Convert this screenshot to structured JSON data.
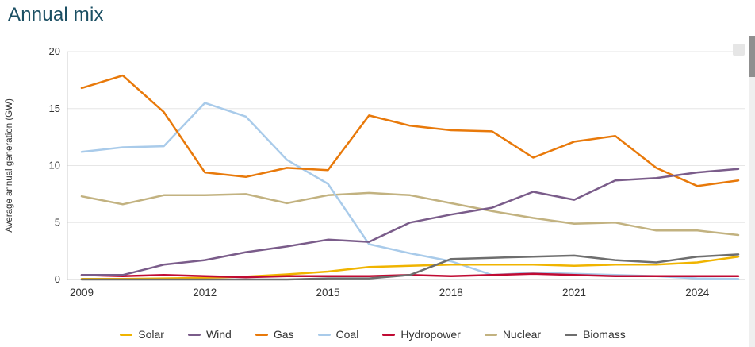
{
  "page": {
    "title": "Annual mix"
  },
  "chart_data": {
    "type": "line",
    "title": "Annual mix",
    "xlabel": "",
    "ylabel": "Average annual generation (GW)",
    "x": [
      2009,
      2010,
      2011,
      2012,
      2013,
      2014,
      2015,
      2016,
      2017,
      2018,
      2019,
      2020,
      2021,
      2022,
      2023,
      2024,
      2025
    ],
    "x_ticks": [
      2009,
      2012,
      2015,
      2018,
      2021,
      2024
    ],
    "ylim": [
      0,
      20
    ],
    "y_ticks": [
      0,
      5,
      10,
      15,
      20
    ],
    "grid": true,
    "legend_position": "bottom",
    "series": [
      {
        "name": "Solar",
        "color": "#f0b400",
        "values": [
          0.05,
          0.05,
          0.1,
          0.15,
          0.25,
          0.45,
          0.7,
          1.1,
          1.2,
          1.3,
          1.3,
          1.3,
          1.2,
          1.3,
          1.3,
          1.5,
          2.0
        ]
      },
      {
        "name": "Wind",
        "color": "#7a5c8a",
        "values": [
          0.4,
          0.4,
          1.3,
          1.7,
          2.4,
          2.9,
          3.5,
          3.3,
          5.0,
          5.7,
          6.3,
          7.7,
          7.0,
          8.7,
          8.9,
          9.4,
          9.7
        ]
      },
      {
        "name": "Gas",
        "color": "#e8790a",
        "values": [
          16.8,
          17.9,
          14.7,
          9.4,
          9.0,
          9.8,
          9.6,
          14.4,
          13.5,
          13.1,
          13.0,
          10.7,
          12.1,
          12.6,
          9.8,
          8.2,
          8.7
        ]
      },
      {
        "name": "Coal",
        "color": "#a9cbea",
        "values": [
          11.2,
          11.6,
          11.7,
          15.5,
          14.3,
          10.5,
          8.4,
          3.1,
          2.3,
          1.6,
          0.4,
          0.6,
          0.5,
          0.4,
          0.3,
          0.1,
          0.05
        ]
      },
      {
        "name": "Hydropower",
        "color": "#c00a33",
        "values": [
          0.4,
          0.3,
          0.4,
          0.3,
          0.2,
          0.3,
          0.3,
          0.3,
          0.4,
          0.3,
          0.4,
          0.5,
          0.4,
          0.3,
          0.3,
          0.3,
          0.3
        ]
      },
      {
        "name": "Nuclear",
        "color": "#c2b280",
        "values": [
          7.3,
          6.6,
          7.4,
          7.4,
          7.5,
          6.7,
          7.4,
          7.6,
          7.4,
          6.7,
          6.0,
          5.4,
          4.9,
          5.0,
          4.3,
          4.3,
          3.9
        ]
      },
      {
        "name": "Biomass",
        "color": "#6e6e6e",
        "values": [
          0.0,
          0.0,
          0.0,
          0.0,
          0.0,
          0.0,
          0.1,
          0.1,
          0.4,
          1.8,
          1.9,
          2.0,
          2.1,
          1.7,
          1.5,
          2.0,
          2.2
        ]
      }
    ]
  },
  "icons": {
    "chart_menu": "chart-menu-icon"
  }
}
